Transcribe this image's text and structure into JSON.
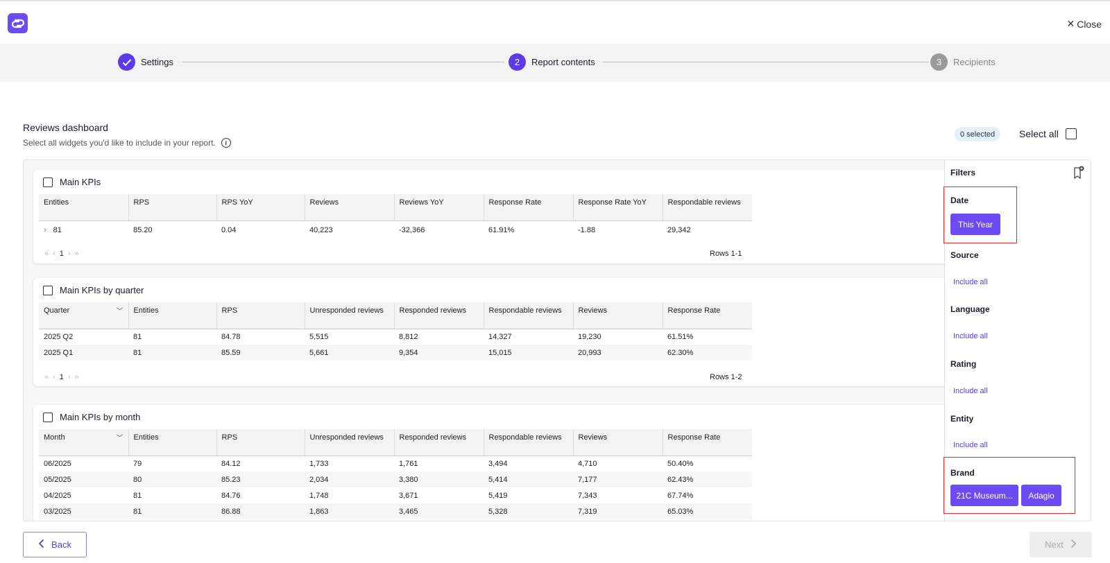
{
  "header": {
    "close_label": "Close"
  },
  "steps": [
    {
      "number": "",
      "label": "Settings",
      "state": "done"
    },
    {
      "number": "2",
      "label": "Report contents",
      "state": "active"
    },
    {
      "number": "3",
      "label": "Recipients",
      "state": "todo"
    }
  ],
  "dashboard": {
    "title": "Reviews dashboard",
    "subtitle": "Select all widgets you'd like to include in your report.",
    "selected_badge": "0 selected",
    "select_all_label": "Select all"
  },
  "widgets": {
    "kpis": {
      "title": "Main KPIs",
      "columns": [
        "Entities",
        "RPS",
        "RPS YoY",
        "Reviews",
        "Reviews YoY",
        "Response Rate",
        "Response Rate YoY",
        "Respondable reviews"
      ],
      "rows": [
        [
          "81",
          "85.20",
          "0.04",
          "40,223",
          "-32,366",
          "61.91%",
          "-1.88",
          "29,342"
        ]
      ],
      "page": "1",
      "rows_label": "Rows 1-1"
    },
    "quarter": {
      "title": "Main KPIs by quarter",
      "columns": [
        "Quarter",
        "Entities",
        "RPS",
        "Unresponded reviews",
        "Responded reviews",
        "Respondable reviews",
        "Reviews",
        "Response Rate"
      ],
      "rows": [
        [
          "2025 Q2",
          "81",
          "84.78",
          "5,515",
          "8,812",
          "14,327",
          "19,230",
          "61.51%"
        ],
        [
          "2025 Q1",
          "81",
          "85.59",
          "5,661",
          "9,354",
          "15,015",
          "20,993",
          "62.30%"
        ]
      ],
      "page": "1",
      "rows_label": "Rows 1-2"
    },
    "month": {
      "title": "Main KPIs by month",
      "columns": [
        "Month",
        "Entities",
        "RPS",
        "Unresponded reviews",
        "Responded reviews",
        "Respondable reviews",
        "Reviews",
        "Response Rate"
      ],
      "rows": [
        [
          "06/2025",
          "79",
          "84.12",
          "1,733",
          "1,761",
          "3,494",
          "4,710",
          "50.40%"
        ],
        [
          "05/2025",
          "80",
          "85.23",
          "2,034",
          "3,380",
          "5,414",
          "7,177",
          "62.43%"
        ],
        [
          "04/2025",
          "81",
          "84.76",
          "1,748",
          "3,671",
          "5,419",
          "7,343",
          "67.74%"
        ],
        [
          "03/2025",
          "81",
          "86.88",
          "1,863",
          "3,465",
          "5,328",
          "7,319",
          "65.03%"
        ]
      ]
    }
  },
  "filters": {
    "title": "Filters",
    "date": {
      "label": "Date",
      "value": "This Year"
    },
    "source": {
      "label": "Source",
      "link": "Include all"
    },
    "language": {
      "label": "Language",
      "link": "Include all"
    },
    "rating": {
      "label": "Rating",
      "link": "Include all"
    },
    "entity": {
      "label": "Entity",
      "link": "Include all"
    },
    "brand": {
      "label": "Brand",
      "chips": [
        "21C Museum...",
        "Adagio"
      ]
    }
  },
  "footer": {
    "back_label": "Back",
    "next_label": "Next"
  },
  "colors": {
    "accent": "#5c3ae8",
    "chip": "#6d4bf4",
    "highlight": "#e12b2b"
  }
}
